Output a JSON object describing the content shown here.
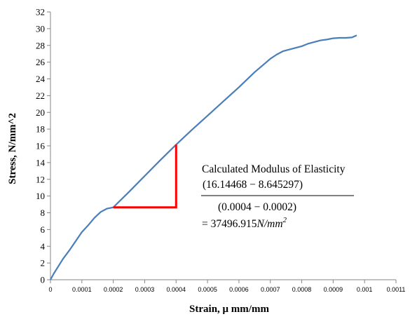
{
  "chart_data": {
    "type": "line",
    "title": "",
    "xlabel": "Strain, μ mm/mm",
    "ylabel": "Stress, N/mm^2",
    "xlim": [
      0,
      0.0011
    ],
    "ylim": [
      0,
      32
    ],
    "x_ticks": [
      "0",
      "0.0001",
      "0.0002",
      "0.0003",
      "0.0004",
      "0.0005",
      "0.0006",
      "0.0007",
      "0.0008",
      "0.0009",
      "0.001",
      "0.0011"
    ],
    "y_ticks": [
      "0",
      "2",
      "4",
      "6",
      "8",
      "10",
      "12",
      "14",
      "16",
      "18",
      "20",
      "22",
      "24",
      "26",
      "28",
      "30",
      "32"
    ],
    "grid": false,
    "legend": "none",
    "colors": {
      "series": "#4a7ebb",
      "annotation": "#ff0000"
    },
    "series": [
      {
        "x": [
          0,
          1e-05,
          2e-05,
          4e-05,
          6e-05,
          8e-05,
          0.0001,
          0.00012,
          0.00014,
          0.00016,
          0.00018,
          0.0002,
          0.00025,
          0.0003,
          0.00035,
          0.0004,
          0.00045,
          0.0005,
          0.00055,
          0.0006,
          0.00065,
          0.0007,
          0.00072,
          0.00074,
          0.00076,
          0.00078,
          0.0008,
          0.00082,
          0.00084,
          0.00086,
          0.00088,
          0.0009,
          0.00092,
          0.00094,
          0.00096,
          0.000975
        ],
        "y": [
          0,
          0.7,
          1.3,
          2.5,
          3.5,
          4.6,
          5.7,
          6.5,
          7.4,
          8.1,
          8.5,
          8.65,
          10.5,
          12.4,
          14.3,
          16.14,
          17.9,
          19.6,
          21.3,
          23.0,
          24.8,
          26.4,
          26.9,
          27.3,
          27.5,
          27.7,
          27.9,
          28.2,
          28.4,
          28.6,
          28.7,
          28.85,
          28.9,
          28.9,
          28.95,
          29.2
        ]
      }
    ],
    "annotation": {
      "slope_triangle": {
        "x1": 0.0002,
        "x2": 0.0004,
        "y1": 8.645297,
        "y2": 16.14468
      },
      "title": "Calculated Modulus of Elasticity",
      "numerator": "(16.14468 − 8.645297)",
      "denominator": "(0.0004 − 0.0002)",
      "result_prefix": "= 37496.915",
      "result_unit": "N/mm",
      "result_exp": "2"
    }
  }
}
